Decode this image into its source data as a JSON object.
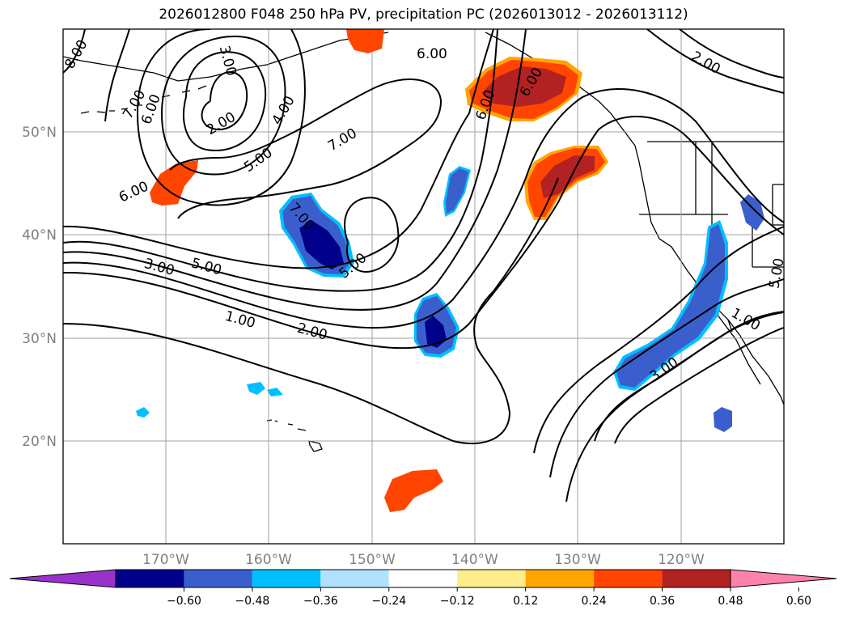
{
  "title": "2026012800 F048 250 hPa PV, precipitation PC (2026013012 - 2026013112)",
  "lat_labels": [
    "50°N",
    "40°N",
    "30°N",
    "20°N"
  ],
  "lon_labels": [
    "170°W",
    "160°W",
    "150°W",
    "140°W",
    "130°W",
    "120°W"
  ],
  "colorbar": {
    "ticks": [
      "−0.60",
      "−0.48",
      "−0.36",
      "−0.24",
      "−0.12",
      "0.12",
      "0.24",
      "0.36",
      "0.48",
      "0.60"
    ],
    "colors": [
      "#9932cc",
      "#00008b",
      "#3a5fcd",
      "#00bfff",
      "#b0e2ff",
      "#ffffff",
      "#ffec8b",
      "#ffa500",
      "#ff4500",
      "#b22222",
      "#ff82ab"
    ]
  },
  "contour_labels": [
    "8.00",
    "7.00",
    "6.00",
    "3.00",
    "2.00",
    "4.00",
    "5.00",
    "6.00",
    "6.00",
    "7.00",
    "7.00",
    "5.00",
    "3.00",
    "5.00",
    "1.00",
    "2.00",
    "6.00",
    "6.00",
    "2.00",
    "5.00",
    "1.00",
    "3.00"
  ],
  "map": {
    "region": "North Pacific and western North America",
    "extent_lon": [
      -180,
      -110
    ],
    "extent_lat": [
      10,
      60
    ]
  }
}
